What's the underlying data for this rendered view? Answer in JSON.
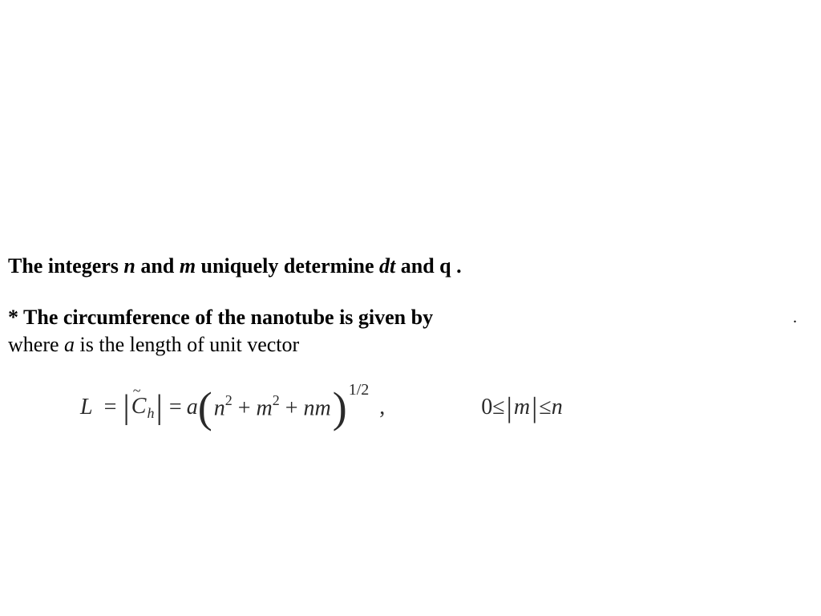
{
  "text": {
    "line1_part1": "The integers ",
    "line1_n": "n",
    "line1_and": " and ",
    "line1_m": "m",
    "line1_part2": " uniquely determine ",
    "line1_dt": "dt",
    "line1_part3": " and q .",
    "line2": "* The circumference of the nanotube is given by",
    "line3_part1": "where ",
    "line3_a": "a",
    "line3_part2": " is the length of unit vector"
  },
  "equation": {
    "L": "L",
    "eq": "=",
    "bar": "|",
    "C": "C",
    "tilde": "~",
    "h": "h",
    "a": "a",
    "lparen": "(",
    "n": "n",
    "sq": "2",
    "plus": " + ",
    "m": "m",
    "nm": "nm",
    "rparen": ")",
    "half": "1/2",
    "comma": ",",
    "zero": "0",
    "le": " ≤ ",
    "absm_l": "|",
    "absm": "m",
    "absm_r": "|",
    "le2": " ≤ ",
    "nn": "n"
  },
  "style": {
    "body_font": "Times New Roman",
    "body_fontsize": 26,
    "eq_fontsize": 28,
    "text_color": "#000000",
    "eq_color": "#2a2a2a",
    "background": "#ffffff"
  }
}
